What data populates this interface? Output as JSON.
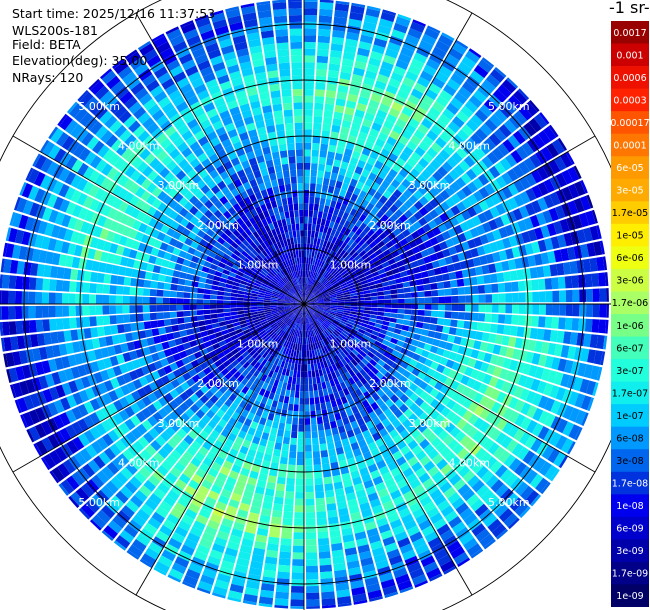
{
  "header": {
    "start_time": "Start time: 2025/12/16 11:37:53",
    "instrument": "WLS200s-181",
    "field": "Field: BETA",
    "elevation": "Elevation(deg): 35.00",
    "nrays": "NRays: 120"
  },
  "colorbar": {
    "title": "-1 sr-",
    "labels": [
      "0.0017",
      "0.001",
      "0.0006",
      "0.0003",
      "0.00017",
      "0.0001",
      "6e-05",
      "3e-05",
      "1.7e-05",
      "1e-05",
      "6e-06",
      "3e-06",
      "1.7e-06",
      "1e-06",
      "6e-07",
      "3e-07",
      "1.7e-07",
      "1e-07",
      "6e-08",
      "3e-08",
      "1.7e-08",
      "1e-08",
      "6e-09",
      "3e-09",
      "1.7e-09",
      "1e-09"
    ],
    "colors": [
      "#990000",
      "#cc0000",
      "#ee1100",
      "#ff2200",
      "#ff5500",
      "#ff7700",
      "#ff9900",
      "#ffaa00",
      "#ffcc00",
      "#ffee00",
      "#eeff11",
      "#ccff44",
      "#aaff66",
      "#77ff88",
      "#44ffbb",
      "#22ffdd",
      "#11eeee",
      "#00ccff",
      "#0099ff",
      "#0066ee",
      "#0033dd",
      "#0000ee",
      "#0000cc",
      "#0000aa",
      "#000088",
      "#000066"
    ],
    "text_colors": [
      "#ffffff",
      "#ffffff",
      "#ffffff",
      "#ffffff",
      "#ffffff",
      "#ffffff",
      "#ffffff",
      "#ffffff",
      "#000000",
      "#000000",
      "#000000",
      "#000000",
      "#000000",
      "#000000",
      "#000000",
      "#000000",
      "#000000",
      "#000000",
      "#000000",
      "#000000",
      "#ffffff",
      "#ffffff",
      "#ffffff",
      "#ffffff",
      "#ffffff",
      "#ffffff"
    ]
  },
  "chart_data": {
    "type": "heatmap",
    "projection": "polar-ppi",
    "nrays": 120,
    "range_rings_km": [
      1,
      2,
      3,
      4,
      5,
      6
    ],
    "max_range_km": 5.8,
    "ring_labels": [
      "1.00km",
      "2.00km",
      "3.00km",
      "4.00km",
      "5.00km"
    ],
    "azimuth_lines_deg": [
      0,
      30,
      60,
      90,
      120,
      150,
      180,
      210,
      240,
      270,
      300,
      330
    ],
    "value_scale": "log",
    "value_range": [
      1e-09,
      0.0017
    ],
    "radial_profile_log10": [
      {
        "r_km": 0.0,
        "value": -8.2
      },
      {
        "r_km": 1.0,
        "value": -8.1
      },
      {
        "r_km": 2.0,
        "value": -7.6
      },
      {
        "r_km": 3.0,
        "value": -6.9
      },
      {
        "r_km": 4.0,
        "value": -6.5
      },
      {
        "r_km": 5.0,
        "value": -7.4
      },
      {
        "r_km": 5.8,
        "value": -7.9
      }
    ]
  }
}
